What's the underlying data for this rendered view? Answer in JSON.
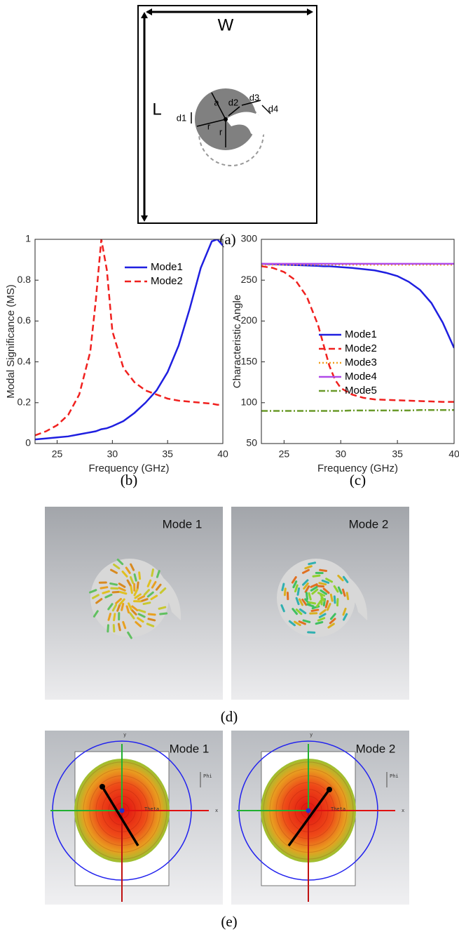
{
  "diagram": {
    "labels": [
      "W",
      "L",
      "a",
      "d2",
      "d3",
      "d4",
      "d1",
      "r",
      "r"
    ],
    "caption": "(a)"
  },
  "chart_data": [
    {
      "type": "line",
      "xlabel": "Frequency (GHz)",
      "ylabel": "Modal Significance (MS)",
      "x": [
        23,
        24,
        25,
        26,
        27,
        28,
        28.5,
        29,
        29.5,
        30,
        31,
        32,
        33,
        34,
        35,
        36,
        37,
        38,
        39,
        39.5,
        40
      ],
      "series": [
        {
          "name": "Mode1",
          "color": "#1f1fe0",
          "style": "solid",
          "values": [
            0.02,
            0.025,
            0.03,
            0.035,
            0.045,
            0.055,
            0.06,
            0.07,
            0.075,
            0.085,
            0.11,
            0.15,
            0.2,
            0.26,
            0.35,
            0.48,
            0.66,
            0.86,
            0.99,
            1.0,
            0.97
          ]
        },
        {
          "name": "Mode2",
          "color": "#f0201e",
          "style": "dashed",
          "values": [
            0.04,
            0.06,
            0.09,
            0.14,
            0.24,
            0.45,
            0.7,
            1.0,
            0.85,
            0.55,
            0.37,
            0.3,
            0.26,
            0.24,
            0.22,
            0.21,
            0.205,
            0.2,
            0.195,
            0.19,
            0.19
          ]
        }
      ],
      "xlim": [
        23,
        40
      ],
      "xticks": [
        25,
        30,
        35,
        40
      ],
      "ylim": [
        0,
        1
      ],
      "yticks": [
        0,
        0.2,
        0.4,
        0.6,
        0.8,
        1
      ],
      "legend": "upper right",
      "caption": "(b)"
    },
    {
      "type": "line",
      "xlabel": "Frequency (GHz)",
      "ylabel": "Characteristic Angle",
      "x": [
        23,
        24,
        25,
        26,
        27,
        28,
        28.5,
        29,
        29.5,
        30,
        31,
        32,
        33,
        34,
        35,
        36,
        37,
        38,
        39,
        40
      ],
      "series": [
        {
          "name": "Mode1",
          "color": "#1f1fe0",
          "style": "solid",
          "values": [
            270,
            269.5,
            269,
            268.5,
            268,
            267.5,
            267,
            267,
            266.5,
            266,
            265,
            263.5,
            262,
            259,
            255,
            248,
            238,
            222,
            198,
            167
          ]
        },
        {
          "name": "Mode2",
          "color": "#f0201e",
          "style": "dashed",
          "values": [
            267,
            265,
            260,
            250,
            230,
            195,
            170,
            145,
            128,
            118,
            110,
            106,
            104,
            103.5,
            103,
            102.5,
            102,
            101.5,
            101,
            101
          ]
        },
        {
          "name": "Mode3",
          "color": "#f0a020",
          "style": "dotted",
          "values": [
            269,
            269,
            269,
            269,
            269,
            269,
            269,
            269,
            269,
            269,
            269,
            269,
            269,
            269,
            269,
            269,
            269,
            269,
            269,
            269
          ]
        },
        {
          "name": "Mode4",
          "color": "#b04ae8",
          "style": "solid",
          "values": [
            270,
            270,
            270,
            270,
            270,
            270,
            270,
            270,
            270,
            270,
            270,
            270,
            270,
            270,
            270,
            270,
            270,
            270,
            270,
            270
          ]
        },
        {
          "name": "Mode5",
          "color": "#6a9a2a",
          "style": "dashdot",
          "values": [
            90,
            90,
            90,
            90,
            90,
            90,
            90,
            90,
            90,
            90,
            90.5,
            90.5,
            90.5,
            90.5,
            90.5,
            90.5,
            91,
            91,
            91,
            91
          ]
        }
      ],
      "xlim": [
        23,
        40
      ],
      "xticks": [
        25,
        30,
        35,
        40
      ],
      "ylim": [
        50,
        300
      ],
      "yticks": [
        50,
        100,
        150,
        200,
        250,
        300
      ],
      "legend": "center right",
      "caption": "(c)"
    }
  ],
  "current_panels": {
    "titles": [
      "Mode 1",
      "Mode 2"
    ],
    "caption": "(d)"
  },
  "pattern_panels": {
    "titles": [
      "Mode 1",
      "Mode 2"
    ],
    "axis_labels": [
      "y",
      "x",
      "Theta",
      "Phi"
    ],
    "caption": "(e)"
  }
}
